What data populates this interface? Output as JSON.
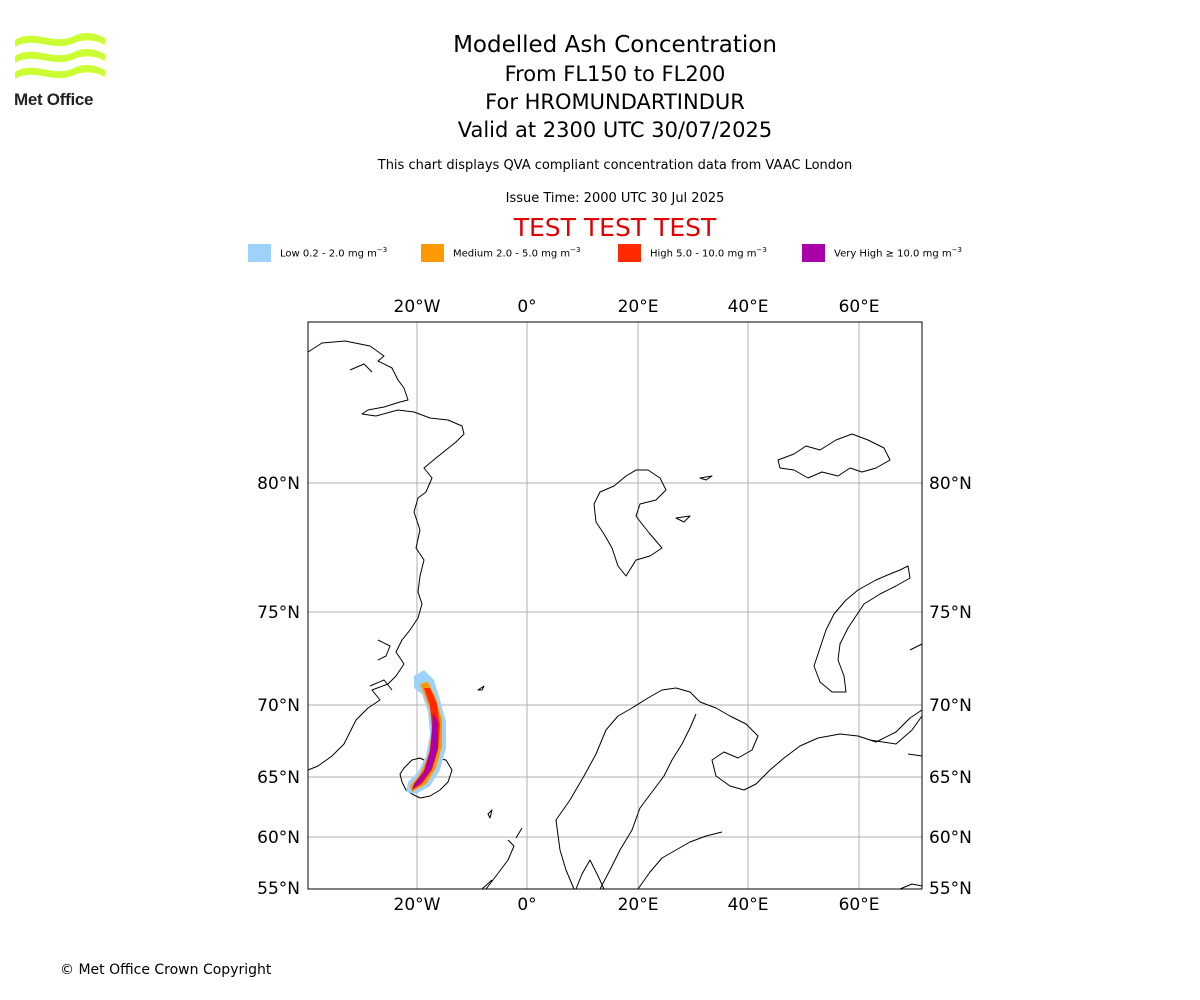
{
  "logo": {
    "text": "Met Office",
    "color": "#ccff33"
  },
  "title": {
    "main": "Modelled Ash Concentration",
    "levels": "From FL150 to FL200",
    "volcano": "For HROMUNDARTINDUR",
    "valid": "Valid at 2300 UTC 30/07/2025"
  },
  "notes": {
    "compliance": "This chart displays QVA compliant concentration data from VAAC London",
    "issue": "Issue Time: 2000 UTC 30 Jul 2025"
  },
  "test_banner": "TEST TEST TEST",
  "legend": [
    {
      "label": "Low 0.2 - 2.0 mg m",
      "unit_exp": "−3",
      "color": "#9ed2fb"
    },
    {
      "label": "Medium 2.0 - 5.0 mg m",
      "unit_exp": "−3",
      "color": "#ff9900"
    },
    {
      "label": "High 5.0 - 10.0 mg m",
      "unit_exp": "−3",
      "color": "#ff2a00"
    },
    {
      "label": "Very High  ≥  10.0 mg m",
      "unit_exp": "−3",
      "color": "#aa00aa"
    }
  ],
  "map": {
    "lon_ticks": [
      "20°W",
      "0°",
      "20°E",
      "40°E",
      "60°E"
    ],
    "lat_ticks": [
      "80°N",
      "75°N",
      "70°N",
      "65°N",
      "60°N",
      "55°N"
    ],
    "gridline_color": "#b0b0b0"
  },
  "copyright": "© Met Office Crown Copyright"
}
